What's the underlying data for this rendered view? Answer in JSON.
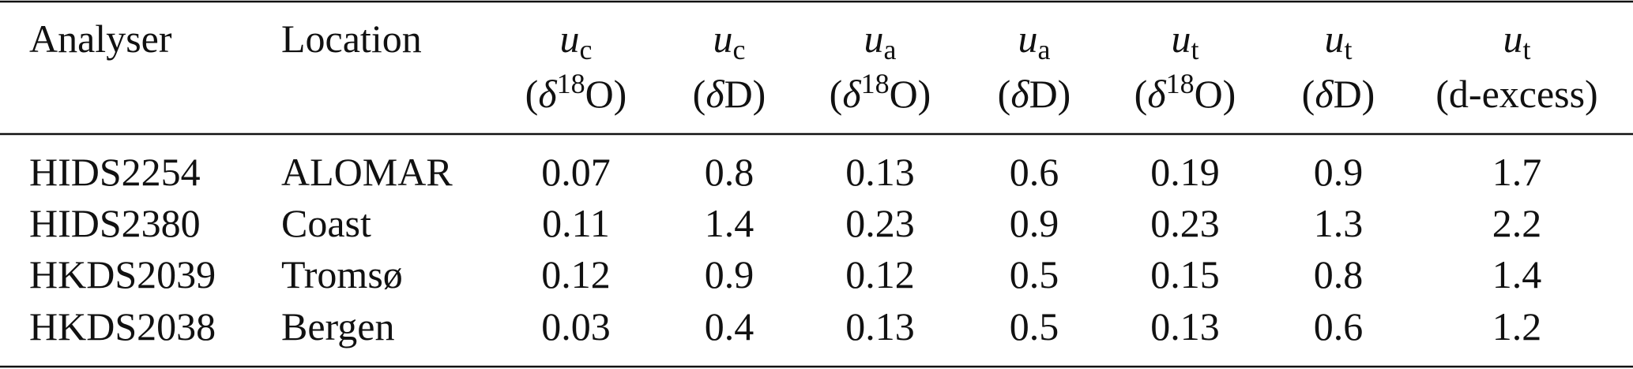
{
  "table": {
    "columns": [
      {
        "label": "Analyser"
      },
      {
        "label": "Location"
      },
      {
        "var": "u",
        "sub": "c",
        "open": "(",
        "delta": "δ",
        "sup": "18",
        "rest": "O)"
      },
      {
        "var": "u",
        "sub": "c",
        "open": "(",
        "delta": "δ",
        "rest": "D)"
      },
      {
        "var": "u",
        "sub": "a",
        "open": "(",
        "delta": "δ",
        "sup": "18",
        "rest": "O)"
      },
      {
        "var": "u",
        "sub": "a",
        "open": "(",
        "delta": "δ",
        "rest": "D)"
      },
      {
        "var": "u",
        "sub": "t",
        "open": "(",
        "delta": "δ",
        "sup": "18",
        "rest": "O)"
      },
      {
        "var": "u",
        "sub": "t",
        "open": "(",
        "delta": "δ",
        "rest": "D)"
      },
      {
        "var": "u",
        "sub": "t",
        "rest": "(d-excess)"
      }
    ],
    "rows": [
      [
        "HIDS2254",
        "ALOMAR",
        0.07,
        0.8,
        0.13,
        0.6,
        0.19,
        0.9,
        1.7
      ],
      [
        "HIDS2380",
        "Coast",
        0.11,
        1.4,
        0.23,
        0.9,
        0.23,
        1.3,
        2.2
      ],
      [
        "HKDS2039",
        "Tromsø",
        0.12,
        0.9,
        0.12,
        0.5,
        0.15,
        0.8,
        1.4
      ],
      [
        "HKDS2038",
        "Bergen",
        0.03,
        0.4,
        0.13,
        0.5,
        0.13,
        0.6,
        1.2
      ]
    ]
  }
}
